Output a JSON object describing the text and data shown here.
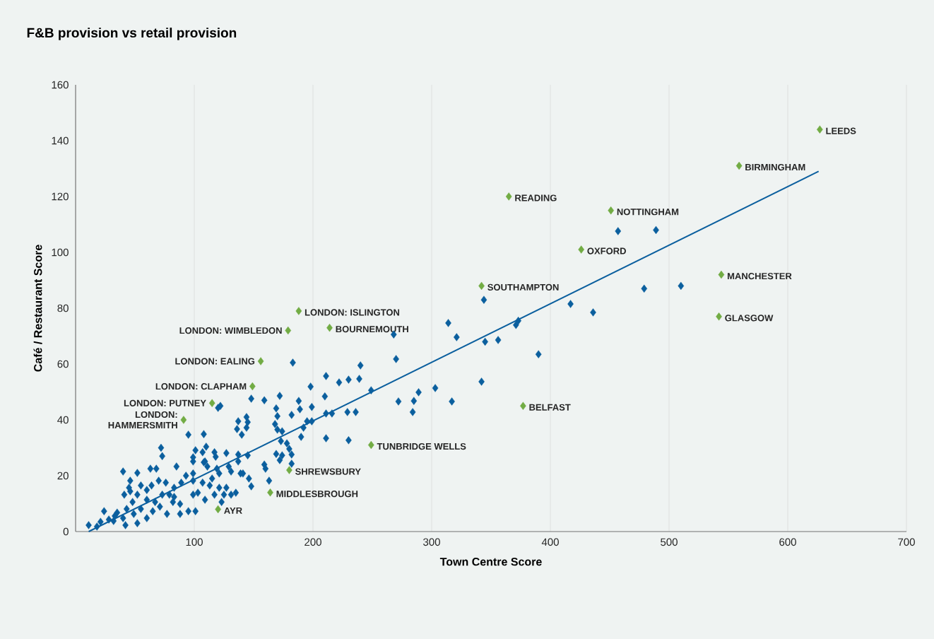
{
  "chart_data": {
    "type": "scatter",
    "title": "F&B provision vs retail provision",
    "xlabel": "Town Centre Score",
    "ylabel": "Café / Restaurant Score",
    "xlim": [
      0,
      700
    ],
    "xticks": [
      100,
      200,
      300,
      400,
      500,
      600,
      700
    ],
    "ylim": [
      0,
      160
    ],
    "yticks": [
      0,
      20,
      40,
      60,
      80,
      100,
      120,
      140,
      160
    ],
    "grid": "x",
    "marker": "diamond",
    "series": [
      {
        "color": "#0b5f9e",
        "x": [
          457,
          489,
          479,
          510,
          417,
          436,
          344,
          390,
          345,
          371,
          373,
          356,
          314,
          321,
          342,
          317,
          303,
          289,
          285,
          284,
          272,
          270,
          268,
          249,
          240,
          239,
          230,
          222,
          236,
          229,
          230,
          211,
          210,
          211,
          216,
          211,
          198,
          199,
          199,
          195,
          192,
          190,
          189,
          188,
          183,
          172,
          182,
          169,
          170,
          168,
          170,
          174,
          173,
          178,
          180,
          182,
          182,
          169,
          174,
          172,
          159,
          148,
          144,
          145,
          144,
          137,
          136,
          140,
          122,
          120,
          108,
          110,
          108,
          95,
          118,
          127,
          145,
          159,
          160,
          146,
          163,
          148,
          125,
          73,
          52,
          63,
          68,
          85,
          55,
          46,
          24,
          11,
          32,
          42,
          60,
          73,
          77,
          65,
          88,
          95,
          101,
          99,
          109,
          117,
          131,
          135,
          123,
          127,
          121,
          113,
          103,
          99,
          107,
          115,
          121,
          131,
          139,
          137,
          129,
          119,
          111,
          109,
          99,
          99,
          93,
          89,
          83,
          79,
          76,
          70,
          64,
          60,
          52,
          48,
          43,
          40,
          49,
          55,
          60,
          52,
          67,
          71,
          82,
          83,
          88,
          107,
          101,
          99,
          117,
          137,
          141,
          40,
          46,
          72,
          41,
          45,
          35,
          33,
          28,
          21,
          18
        ],
        "values": [
          107.6,
          108,
          87,
          88,
          81.5,
          78.5,
          83,
          63.5,
          68,
          74,
          75.5,
          68.6,
          74.7,
          69.6,
          53.7,
          46.6,
          51.4,
          49.9,
          46.8,
          42.8,
          46.6,
          61.8,
          70.6,
          50.6,
          59.5,
          54.7,
          54.4,
          53.4,
          42.8,
          42.8,
          32.7,
          55.7,
          48.4,
          42.3,
          42.3,
          33.4,
          51.9,
          44.6,
          39.5,
          39.5,
          37.2,
          33.9,
          43.8,
          46.8,
          60.5,
          48.6,
          41.8,
          44.1,
          41.3,
          38.5,
          36.5,
          35.9,
          32.4,
          31.6,
          29.6,
          27.6,
          24.3,
          27.8,
          27.3,
          25.6,
          47,
          47.6,
          41,
          39.2,
          37.2,
          39.5,
          36.7,
          34.7,
          45,
          44.3,
          34.9,
          30.4,
          24.8,
          34.7,
          26.8,
          28.1,
          27.3,
          24,
          22.5,
          19,
          18.2,
          16.2,
          13.2,
          27,
          21,
          22.5,
          22.5,
          23.3,
          16.5,
          14.4,
          7.3,
          2.3,
          3.8,
          2.3,
          11.4,
          13.2,
          6.3,
          7.3,
          9.9,
          7.3,
          7.3,
          13.2,
          11.4,
          13.2,
          13.2,
          13.9,
          10.6,
          15.7,
          15.7,
          16.5,
          13.9,
          18.2,
          17.5,
          19,
          20.8,
          21.5,
          20.8,
          25.1,
          23.3,
          22.5,
          23.3,
          25.1,
          25.1,
          20.8,
          20,
          17.5,
          15.7,
          13.2,
          17.5,
          18.2,
          16.5,
          14.9,
          13.2,
          10.6,
          8.1,
          4.8,
          6.3,
          8.1,
          4.8,
          3,
          10.6,
          8.9,
          10.6,
          12.4,
          6.3,
          28.4,
          29.1,
          26.6,
          28.4,
          27.6,
          20.8,
          21.5,
          18.2,
          30,
          13.2,
          15.7,
          6.8,
          5.6,
          4.3,
          3.5,
          1.8
        ]
      },
      {
        "color": "#72ac44",
        "x": [
          627,
          559,
          365,
          451,
          426,
          544,
          342,
          542,
          188,
          179,
          214,
          156,
          149,
          377,
          115,
          91,
          249,
          180,
          164,
          120
        ],
        "values": [
          144,
          131,
          120,
          115,
          101,
          92,
          88,
          77,
          79,
          72,
          73,
          61,
          52,
          45,
          46,
          40,
          31,
          22,
          14,
          8
        ]
      },
      {
        "type": "line",
        "color": "#0b5f9e",
        "marker": "none",
        "x": [
          11,
          626
        ],
        "values": [
          0,
          129
        ]
      }
    ],
    "annotations": [
      {
        "text": "LEEDS",
        "x": 627,
        "y": 144
      },
      {
        "text": "BIRMINGHAM",
        "x": 559,
        "y": 131
      },
      {
        "text": "READING",
        "x": 365,
        "y": 120
      },
      {
        "text": "NOTTINGHAM",
        "x": 451,
        "y": 115
      },
      {
        "text": "OXFORD",
        "x": 426,
        "y": 101
      },
      {
        "text": "MANCHESTER",
        "x": 544,
        "y": 92
      },
      {
        "text": "SOUTHAMPTON",
        "x": 342,
        "y": 88
      },
      {
        "text": "GLASGOW",
        "x": 542,
        "y": 77
      },
      {
        "text": "LONDON: ISLINGTON",
        "x": 188,
        "y": 79
      },
      {
        "text": "LONDON: WIMBLEDON",
        "x": 179,
        "y": 72
      },
      {
        "text": "BOURNEMOUTH",
        "x": 214,
        "y": 73
      },
      {
        "text": "LONDON: EALING",
        "x": 156,
        "y": 61
      },
      {
        "text": "LONDON: CLAPHAM",
        "x": 149,
        "y": 52
      },
      {
        "text": "BELFAST",
        "x": 377,
        "y": 45
      },
      {
        "text": "LONDON: PUTNEY",
        "x": 115,
        "y": 46
      },
      {
        "text": "LONDON: HAMMERSMITH",
        "x": 91,
        "y": 40
      },
      {
        "text": "TUNBRIDGE WELLS",
        "x": 249,
        "y": 31
      },
      {
        "text": "SHREWSBURY",
        "x": 180,
        "y": 22
      },
      {
        "text": "MIDDLESBROUGH",
        "x": 164,
        "y": 14
      },
      {
        "text": "AYR",
        "x": 120,
        "y": 8
      }
    ]
  }
}
